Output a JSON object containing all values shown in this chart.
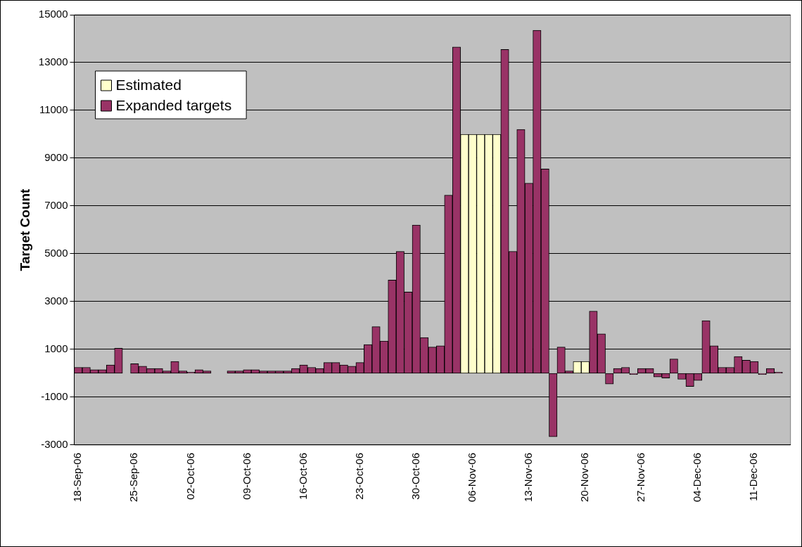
{
  "chart_data": {
    "type": "bar",
    "ylabel": "Target Count",
    "categories": [
      "18-Sep-06",
      null,
      null,
      null,
      null,
      null,
      null,
      "25-Sep-06",
      null,
      null,
      null,
      null,
      null,
      null,
      "02-Oct-06",
      null,
      null,
      null,
      null,
      null,
      null,
      "09-Oct-06",
      null,
      null,
      null,
      null,
      null,
      null,
      "16-Oct-06",
      null,
      null,
      null,
      null,
      null,
      null,
      "23-Oct-06",
      null,
      null,
      null,
      null,
      null,
      null,
      "30-Oct-06",
      null,
      null,
      null,
      null,
      null,
      null,
      "06-Nov-06",
      null,
      null,
      null,
      null,
      null,
      null,
      "13-Nov-06",
      null,
      null,
      null,
      null,
      null,
      null,
      "20-Nov-06",
      null,
      null,
      null,
      null,
      null,
      null,
      "27-Nov-06",
      null,
      null,
      null,
      null,
      null,
      null,
      "04-Dec-06",
      null,
      null,
      null,
      null,
      null,
      null,
      "11-Dec-06",
      null,
      null,
      null,
      null
    ],
    "series": [
      {
        "name": "Estimated",
        "color": "#ffffcc",
        "values": [
          null,
          null,
          null,
          null,
          null,
          null,
          null,
          null,
          null,
          null,
          null,
          null,
          null,
          null,
          null,
          null,
          null,
          null,
          null,
          null,
          null,
          null,
          null,
          null,
          null,
          null,
          null,
          null,
          null,
          null,
          null,
          null,
          null,
          null,
          null,
          null,
          null,
          null,
          null,
          null,
          null,
          null,
          null,
          null,
          null,
          null,
          null,
          null,
          10000,
          10000,
          10000,
          10000,
          10000,
          null,
          null,
          null,
          null,
          null,
          null,
          null,
          null,
          null,
          500,
          500,
          null,
          null,
          null,
          null,
          null,
          null,
          null,
          null,
          null,
          null,
          null,
          null,
          null,
          null,
          null,
          null,
          null,
          null,
          null,
          null,
          null,
          null,
          null,
          null,
          null
        ]
      },
      {
        "name": "Expanded targets",
        "color": "#993366",
        "values": [
          250,
          250,
          150,
          150,
          350,
          1050,
          null,
          400,
          300,
          200,
          200,
          100,
          500,
          100,
          50,
          150,
          100,
          null,
          null,
          100,
          100,
          150,
          150,
          100,
          100,
          100,
          100,
          200,
          350,
          250,
          200,
          450,
          450,
          350,
          300,
          450,
          1200,
          1950,
          1350,
          3900,
          5100,
          3400,
          6200,
          1500,
          1100,
          1150,
          7450,
          13650,
          null,
          null,
          null,
          null,
          null,
          13550,
          5100,
          10200,
          7950,
          14350,
          8550,
          -2650,
          1100,
          100,
          null,
          null,
          2600,
          1650,
          -450,
          200,
          250,
          -50,
          200,
          200,
          -150,
          -200,
          600,
          -250,
          -550,
          -300,
          2200,
          1150,
          250,
          250,
          700,
          550,
          500,
          -50,
          200,
          50,
          null
        ]
      }
    ],
    "ylim": [
      -3000,
      15000
    ],
    "yticks": [
      -3000,
      -1000,
      1000,
      3000,
      5000,
      7000,
      9000,
      11000,
      13000,
      15000
    ],
    "stacked": true,
    "grid": "y",
    "legend": "top left"
  }
}
